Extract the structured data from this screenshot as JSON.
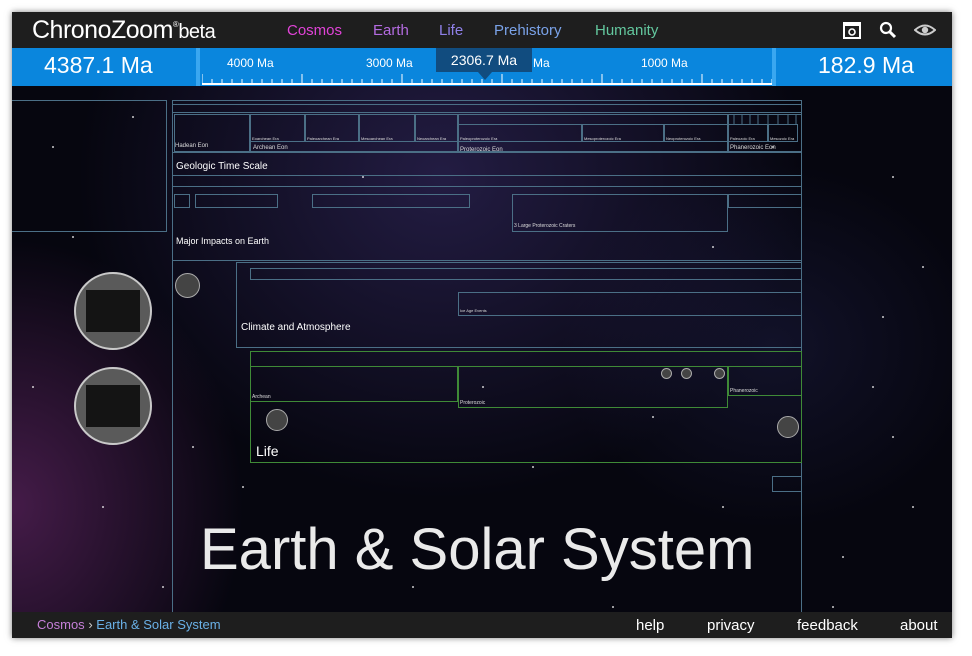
{
  "app": {
    "logo": "ChronoZoom",
    "logo_mark": "®",
    "beta": "beta"
  },
  "nav": [
    {
      "label": "Cosmos",
      "color": "#e043d7"
    },
    {
      "label": "Earth",
      "color": "#b36be0"
    },
    {
      "label": "Life",
      "color": "#8f80e8"
    },
    {
      "label": "Prehistory",
      "color": "#7aa2e8"
    },
    {
      "label": "Humanity",
      "color": "#63c79e"
    }
  ],
  "toolbar": {
    "icons": [
      "tour-icon",
      "search-icon",
      "eye-icon"
    ]
  },
  "ruler": {
    "left_value": "4387.1 Ma",
    "right_value": "182.9 Ma",
    "cursor_value": "2306.7 Ma",
    "tick_labels": [
      "4000 Ma",
      "3000 Ma",
      "Ma",
      "1000 Ma"
    ]
  },
  "timelines": {
    "geologic": {
      "title": "Geologic Time Scale",
      "eons": [
        "Hadean Eon",
        "Archean Eon",
        "Proterozoic Eon",
        "Phanerozoic Eon"
      ],
      "eras": [
        "Eoarchean Era",
        "Paleoarchean Era",
        "Mesoarchean Era",
        "Neoarchean Era",
        "Paleoproterozoic Era",
        "Mesoproterozoic Era",
        "Neoproterozoic Era",
        "Paleozoic Era",
        "Mesozoic Era"
      ]
    },
    "impacts": {
      "title": "Major Impacts on Earth",
      "sub": "3 Large Proterozoic Craters"
    },
    "climate": {
      "title": "Climate and Atmosphere",
      "sub": "Ice Age Events"
    },
    "life": {
      "title": "Life",
      "periods": [
        "Archean",
        "Proterozoic",
        "Phanerozoic"
      ]
    }
  },
  "main_title": "Earth & Solar System",
  "breadcrumb": {
    "root": "Cosmos",
    "separator": "›",
    "current": "Earth & Solar System",
    "root_color": "#c57fd8",
    "current_color": "#6ab0e6"
  },
  "footer": {
    "help": "help",
    "privacy": "privacy",
    "feedback": "feedback",
    "about": "about"
  }
}
